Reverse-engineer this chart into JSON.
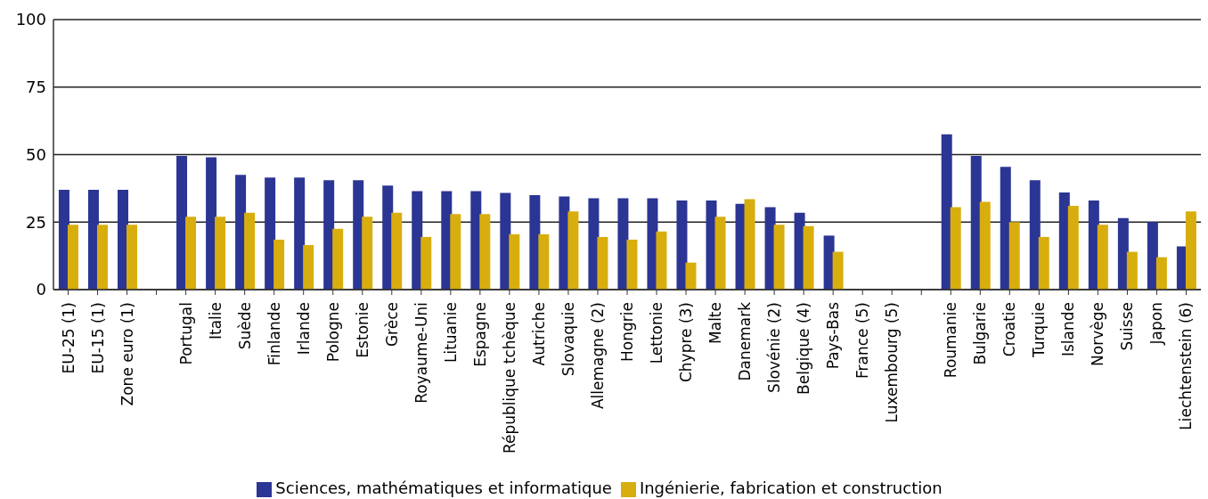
{
  "chart_data": {
    "type": "bar",
    "categories": [
      "EU-25 (1)",
      "EU-15 (1)",
      "Zone euro (1)",
      null,
      "Portugal",
      "Italie",
      "Suède",
      "Finlande",
      "Irlande",
      "Pologne",
      "Estonie",
      "Grèce",
      "Royaume-Uni",
      "Lituanie",
      "Espagne",
      "République tchèque",
      "Autriche",
      "Slovaquie",
      "Allemagne (2)",
      "Hongrie",
      "Lettonie",
      "Chypre (3)",
      "Malte",
      "Danemark",
      "Slovénie (2)",
      "Belgique (4)",
      "Pays-Bas",
      "France (5)",
      "Luxembourg (5)",
      null,
      "Roumanie",
      "Bulgarie",
      "Croatie",
      "Turquie",
      "Islande",
      "Norvège",
      "Suisse",
      "Japon",
      "Liechtenstein (6)"
    ],
    "series": [
      {
        "name": "Sciences, mathématiques et informatique",
        "color": "#2b3594",
        "values": [
          37,
          37,
          37,
          null,
          49.5,
          49,
          42.5,
          41.5,
          41.5,
          40.5,
          40.5,
          38.5,
          36.5,
          36.5,
          36.5,
          35.8,
          35,
          34.5,
          33.8,
          33.8,
          33.8,
          33,
          33,
          31.8,
          30.5,
          28.5,
          20,
          null,
          null,
          null,
          57.5,
          49.5,
          45.5,
          40.5,
          36,
          33,
          26.5,
          25,
          16
        ]
      },
      {
        "name": "Ingénierie, fabrication et construction",
        "color": "#d8ae0e",
        "values": [
          24,
          24,
          24,
          null,
          27,
          27,
          28.5,
          18.5,
          16.5,
          22.5,
          27,
          28.5,
          19.5,
          28,
          28,
          20.5,
          20.5,
          29,
          19.5,
          18.5,
          21.5,
          10,
          27,
          33.5,
          24,
          23.5,
          14,
          null,
          null,
          null,
          30.5,
          32.5,
          25,
          19.5,
          31,
          24,
          14,
          12,
          29
        ]
      }
    ],
    "ylim": [
      0,
      100
    ],
    "yticks": [
      0,
      25,
      50,
      75,
      100
    ],
    "grid": "y",
    "legend": "bottom"
  }
}
